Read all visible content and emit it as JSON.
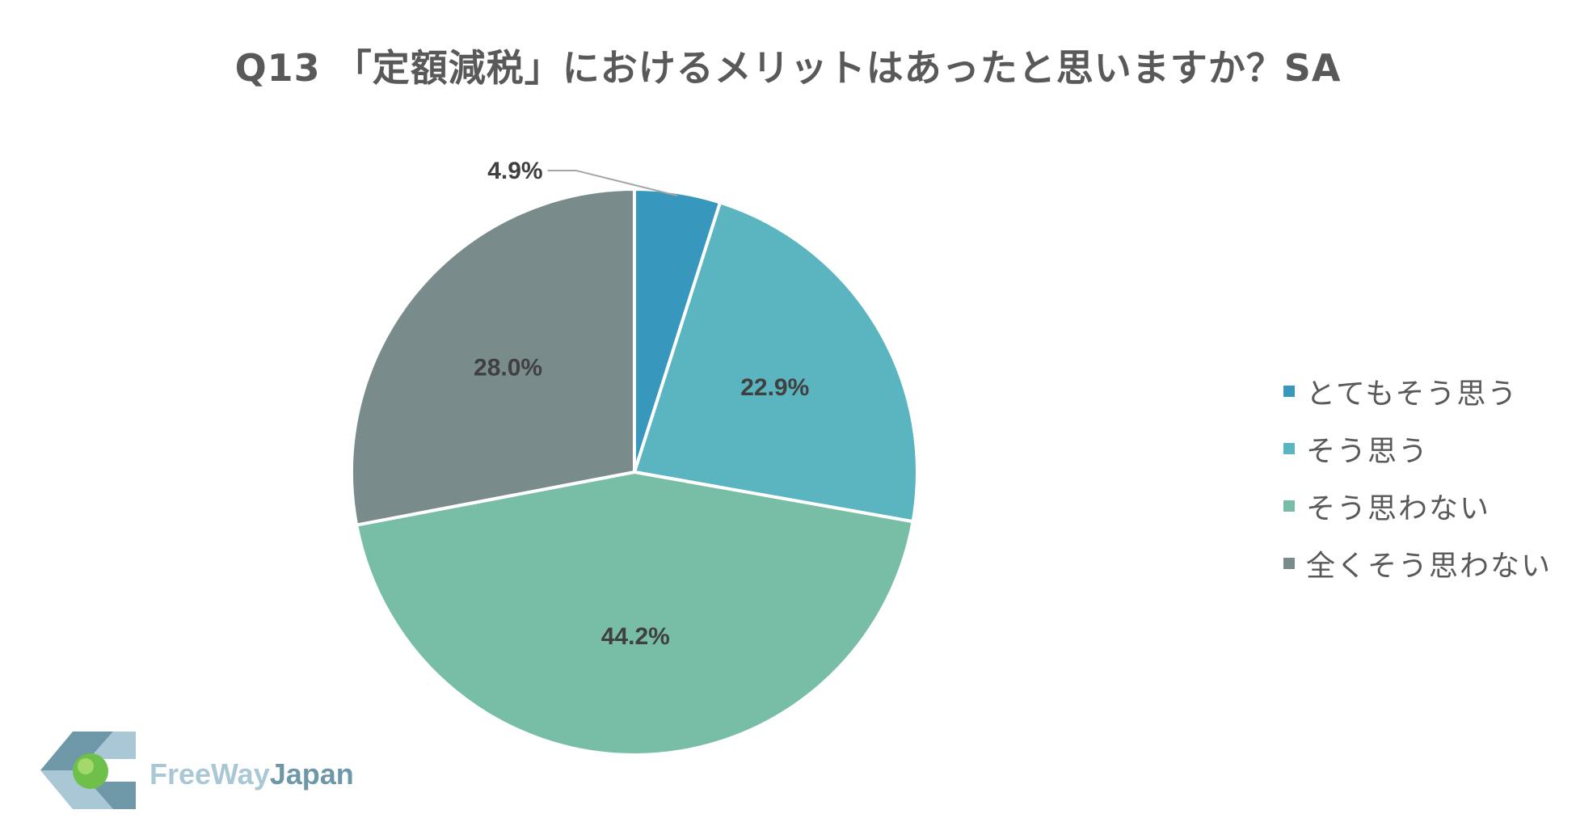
{
  "chart_data": {
    "type": "pie",
    "title": "Q13 「定額減税」におけるメリットはあったと思いますか？SA",
    "categories": [
      "とてもそう思う",
      "そう思う",
      "そう思わない",
      "全くそう思わない"
    ],
    "values": [
      4.9,
      22.9,
      44.2,
      28.0
    ],
    "value_labels": [
      "4.9%",
      "22.9%",
      "44.2%",
      "28.0%"
    ],
    "colors": [
      "#3897bd",
      "#5ab5c1",
      "#78bea6",
      "#7a8b8b"
    ],
    "start_angle_deg": 0,
    "direction": "clockwise",
    "legend_position": "right"
  },
  "logo": {
    "text_part1": "FreeWay",
    "text_part2": "Japan",
    "icon": "freewayjapan-logo-icon"
  }
}
